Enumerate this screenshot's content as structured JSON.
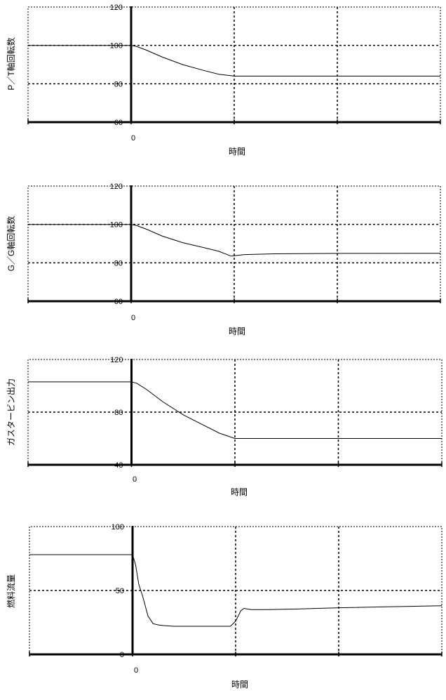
{
  "chart_data": [
    {
      "type": "line",
      "ylabel": "P／T軸回転数",
      "xlabel": "時間",
      "x_tick_labels": [
        "0"
      ],
      "y_ticks": [
        60,
        80,
        100,
        120
      ],
      "ylim": [
        60,
        120
      ],
      "xlim": [
        -1,
        3
      ],
      "grid": true,
      "series": [
        {
          "x": [
            -1,
            0,
            0.05,
            0.15,
            0.3,
            0.5,
            0.7,
            0.85,
            1.0,
            1.3,
            2.0,
            3.0
          ],
          "y": [
            100,
            100,
            99.5,
            97.5,
            94,
            90,
            87,
            85,
            84,
            84,
            84,
            84
          ]
        }
      ]
    },
    {
      "type": "line",
      "ylabel": "G／G軸回転数",
      "xlabel": "時間",
      "x_tick_labels": [
        "0"
      ],
      "y_ticks": [
        60,
        80,
        100,
        120
      ],
      "ylim": [
        60,
        120
      ],
      "xlim": [
        -1,
        3
      ],
      "grid": true,
      "series": [
        {
          "x": [
            -1,
            0,
            0.05,
            0.15,
            0.3,
            0.5,
            0.7,
            0.85,
            0.97,
            1.1,
            1.4,
            2.0,
            3.0
          ],
          "y": [
            100,
            100,
            99.5,
            97.5,
            94,
            90.5,
            88,
            86,
            83.5,
            84.3,
            84.7,
            84.9,
            85
          ]
        }
      ]
    },
    {
      "type": "line",
      "ylabel": "ガスタービン出力",
      "xlabel": "時間",
      "x_tick_labels": [
        "0"
      ],
      "y_ticks": [
        40,
        80,
        120
      ],
      "ylim": [
        40,
        120
      ],
      "xlim": [
        -1,
        3
      ],
      "grid": true,
      "series": [
        {
          "x": [
            -1,
            0,
            0.05,
            0.15,
            0.3,
            0.5,
            0.7,
            0.85,
            1.0,
            1.3,
            2.0,
            3.0
          ],
          "y": [
            103,
            103,
            102,
            97,
            88,
            78,
            70,
            64,
            60,
            60,
            60,
            60
          ]
        }
      ]
    },
    {
      "type": "line",
      "ylabel": "燃料流量",
      "xlabel": "時間",
      "x_tick_labels": [
        "0"
      ],
      "y_ticks": [
        0,
        50,
        100
      ],
      "ylim": [
        0,
        100
      ],
      "xlim": [
        -1,
        3
      ],
      "grid": true,
      "series": [
        {
          "x": [
            -1,
            0,
            0.03,
            0.06,
            0.1,
            0.15,
            0.2,
            0.25,
            0.3,
            0.4,
            0.6,
            0.8,
            0.95,
            1.0,
            1.05,
            1.08,
            1.15,
            1.3,
            1.6,
            2.0,
            3.0
          ],
          "y": [
            78,
            78,
            70,
            55,
            45,
            30,
            24,
            23,
            22.5,
            22,
            22,
            22,
            22,
            26,
            34,
            36,
            35,
            35,
            35.5,
            36.5,
            38
          ]
        }
      ]
    }
  ]
}
